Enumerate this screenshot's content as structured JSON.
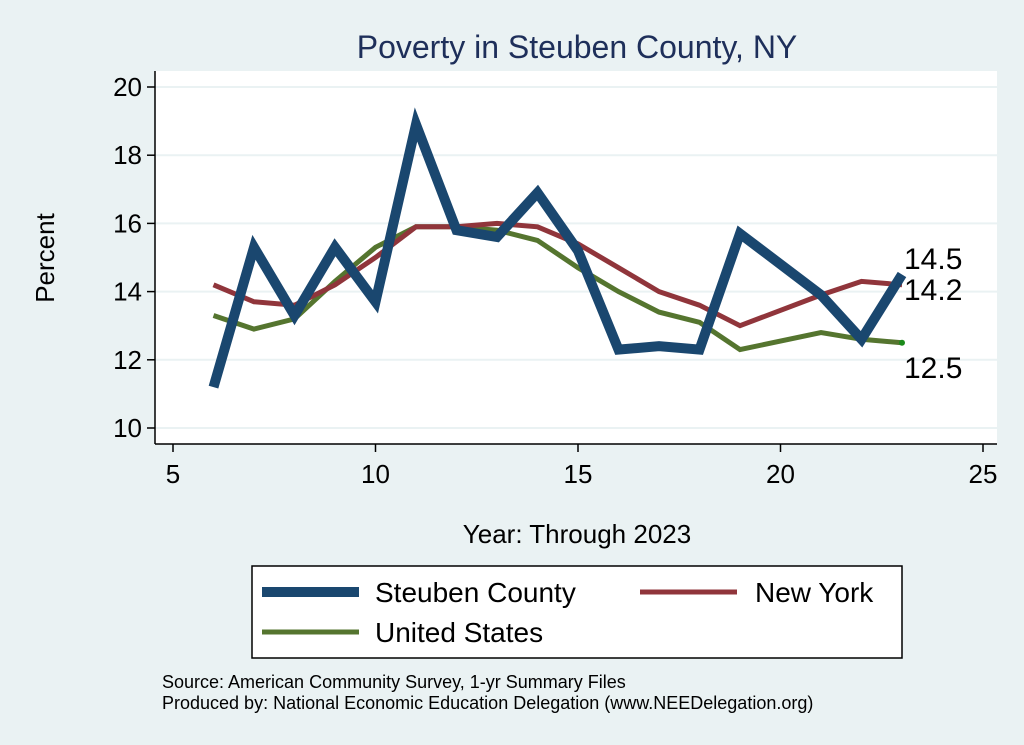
{
  "chart_data": {
    "type": "line",
    "title": "Poverty in Steuben County, NY",
    "xlabel": "Year: Through 2023",
    "ylabel": "Percent",
    "xlim": [
      5,
      25
    ],
    "ylim": [
      10,
      20
    ],
    "xticks": [
      5,
      10,
      15,
      20,
      25
    ],
    "yticks": [
      10,
      12,
      14,
      16,
      18,
      20
    ],
    "grid": true,
    "legend_position": "bottom",
    "series": [
      {
        "name": "Steuben County",
        "color": "#1a476f",
        "x": [
          6,
          7,
          8,
          9,
          10,
          11,
          12,
          13,
          14,
          15,
          16,
          17,
          18,
          19,
          21,
          22,
          23
        ],
        "y": [
          11.2,
          15.3,
          13.3,
          15.3,
          13.7,
          18.9,
          15.8,
          15.6,
          16.9,
          15.2,
          12.3,
          12.4,
          12.3,
          15.7,
          13.9,
          12.6,
          14.5
        ],
        "end_label": "14.5"
      },
      {
        "name": "New York",
        "color": "#90353b",
        "x": [
          6,
          7,
          8,
          9,
          10,
          11,
          12,
          13,
          14,
          15,
          16,
          17,
          18,
          19,
          21,
          22,
          23
        ],
        "y": [
          14.2,
          13.7,
          13.6,
          14.2,
          15.0,
          15.9,
          15.9,
          16.0,
          15.9,
          15.4,
          14.7,
          14.0,
          13.6,
          13.0,
          13.9,
          14.3,
          14.2
        ],
        "end_label": "14.2"
      },
      {
        "name": "United States",
        "color": "#55752f",
        "x": [
          6,
          7,
          8,
          9,
          10,
          11,
          12,
          13,
          14,
          15,
          16,
          17,
          18,
          19,
          21,
          22,
          23
        ],
        "y": [
          13.3,
          12.9,
          13.2,
          14.3,
          15.3,
          15.9,
          15.9,
          15.8,
          15.5,
          14.7,
          14.0,
          13.4,
          13.1,
          12.3,
          12.8,
          12.6,
          12.5
        ],
        "end_label": "12.5"
      }
    ],
    "notes": [
      "Source: American Community Survey, 1-yr Summary Files",
      "Produced by: National Economic Education Delegation (www.NEEDelegation.org)"
    ]
  }
}
